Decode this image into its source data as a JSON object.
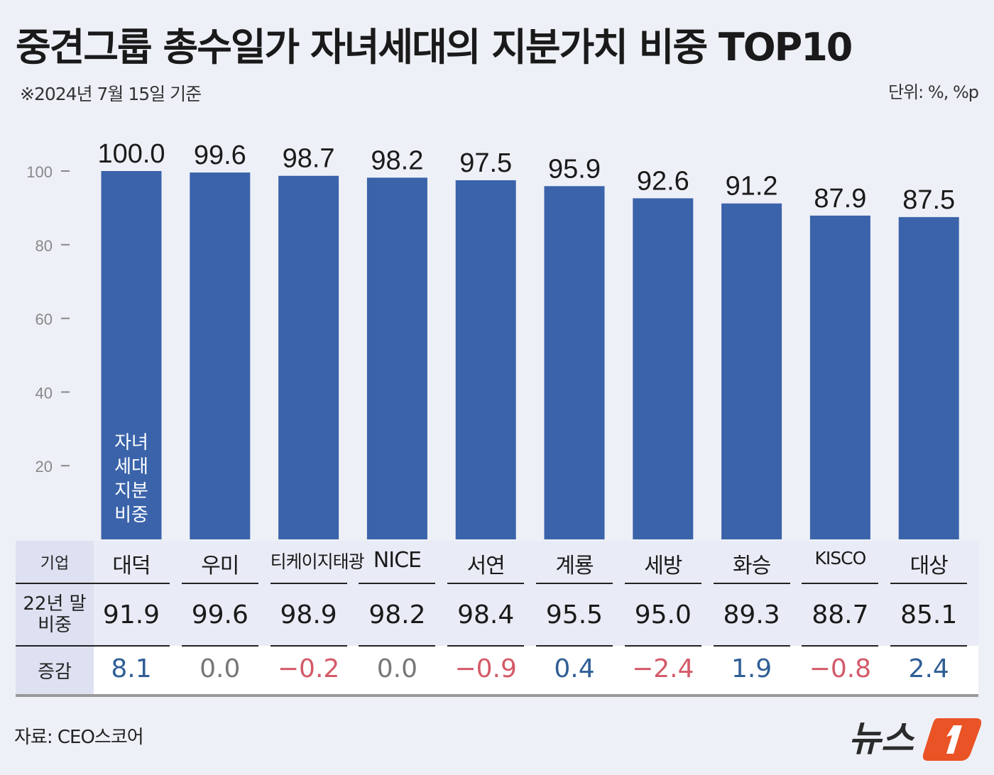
{
  "title": "중견그룹 총수일가 자녀세대의 지분가치 비중 TOP10",
  "subtitle": "※2024년 7월 15일 기준",
  "unit": "단위: %, %p",
  "source": "자료: CEO스코어",
  "logo_text": "뉴스1",
  "colors": {
    "bar": "#3a63aa",
    "positive": "#2f5f96",
    "negative": "#d45a68",
    "zero": "#777777"
  },
  "chart_data": {
    "type": "bar",
    "categories": [
      "대덕",
      "우미",
      "티케이지태광",
      "NICE",
      "서연",
      "계룡",
      "세방",
      "화승",
      "KISCO",
      "대상"
    ],
    "series": [
      {
        "name": "자녀세대 지분비중",
        "values": [
          100.0,
          99.6,
          98.7,
          98.2,
          97.5,
          95.9,
          92.6,
          91.2,
          87.9,
          87.5
        ]
      }
    ],
    "data_labels": [
      "100.0",
      "99.6",
      "98.7",
      "98.2",
      "97.5",
      "95.9",
      "92.6",
      "91.2",
      "87.9",
      "87.5"
    ],
    "yticks": [
      "20",
      "40",
      "60",
      "80",
      "100"
    ],
    "ylim": [
      0,
      100
    ],
    "annotation": "자녀세대지분비중",
    "annotation_lines": [
      "자녀",
      "세대",
      "지분",
      "비중"
    ]
  },
  "table": {
    "headers": [
      "기업",
      "22년 말 비중",
      "증감"
    ],
    "prev_share": [
      "91.9",
      "99.6",
      "98.9",
      "98.2",
      "98.4",
      "95.5",
      "95.0",
      "89.3",
      "88.7",
      "85.1"
    ],
    "change": [
      "8.1",
      "0.0",
      "−0.2",
      "0.0",
      "−0.9",
      "0.4",
      "−2.4",
      "1.9",
      "−0.8",
      "2.4"
    ]
  }
}
